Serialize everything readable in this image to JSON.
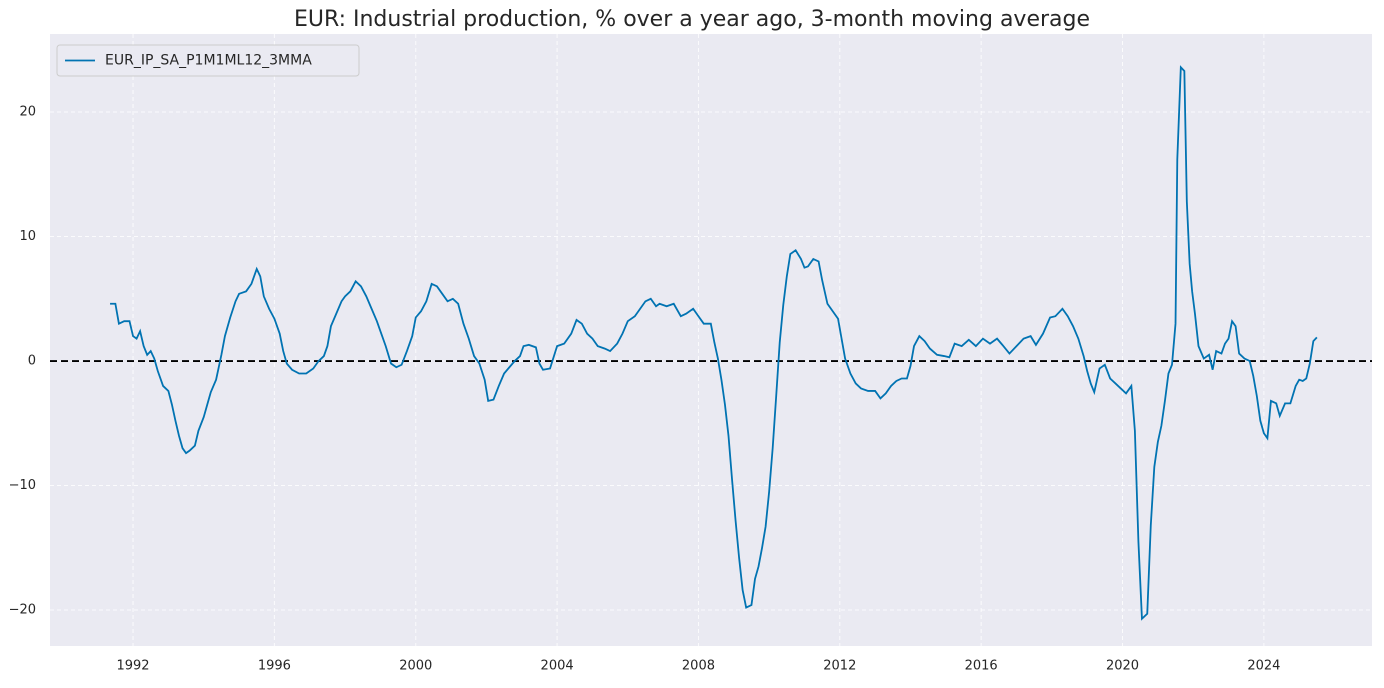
{
  "chart_data": {
    "type": "line",
    "title": "EUR: Industrial production, % over a year ago, 3-month moving average",
    "x": [
      1991.35,
      1991.5,
      1991.6,
      1991.75,
      1991.9,
      1992.0,
      1992.1,
      1992.2,
      1992.3,
      1992.4,
      1992.5,
      1992.6,
      1992.7,
      1992.85,
      1993.0,
      1993.1,
      1993.2,
      1993.3,
      1993.4,
      1993.5,
      1993.6,
      1993.75,
      1993.85,
      1994.0,
      1994.1,
      1994.2,
      1994.35,
      1994.5,
      1994.6,
      1994.75,
      1994.9,
      1995.0,
      1995.2,
      1995.35,
      1995.5,
      1995.6,
      1995.7,
      1995.85,
      1996.0,
      1996.15,
      1996.25,
      1996.35,
      1996.5,
      1996.7,
      1996.9,
      1997.1,
      1997.25,
      1997.4,
      1997.5,
      1997.6,
      1997.75,
      1997.9,
      1998.0,
      1998.15,
      1998.3,
      1998.45,
      1998.6,
      1998.75,
      1998.9,
      1999.0,
      1999.15,
      1999.3,
      1999.45,
      1999.6,
      1999.75,
      1999.9,
      2000.0,
      2000.15,
      2000.3,
      2000.45,
      2000.6,
      2000.75,
      2000.9,
      2001.05,
      2001.2,
      2001.35,
      2001.5,
      2001.65,
      2001.8,
      2001.95,
      2002.05,
      2002.2,
      2002.35,
      2002.5,
      2002.65,
      2002.8,
      2002.95,
      2003.05,
      2003.2,
      2003.4,
      2003.5,
      2003.6,
      2003.8,
      2004.0,
      2004.2,
      2004.4,
      2004.55,
      2004.7,
      2004.85,
      2005.0,
      2005.15,
      2005.35,
      2005.5,
      2005.7,
      2005.85,
      2006.0,
      2006.2,
      2006.35,
      2006.5,
      2006.65,
      2006.8,
      2006.9,
      2007.1,
      2007.3,
      2007.5,
      2007.65,
      2007.85,
      2008.0,
      2008.15,
      2008.35,
      2008.45,
      2008.55,
      2008.65,
      2008.75,
      2008.85,
      2008.95,
      2009.05,
      2009.15,
      2009.25,
      2009.35,
      2009.5,
      2009.6,
      2009.7,
      2009.8,
      2009.9,
      2010.0,
      2010.1,
      2010.2,
      2010.3,
      2010.4,
      2010.5,
      2010.6,
      2010.75,
      2010.9,
      2011.0,
      2011.1,
      2011.25,
      2011.4,
      2011.5,
      2011.65,
      2011.8,
      2011.95,
      2012.05,
      2012.15,
      2012.3,
      2012.45,
      2012.6,
      2012.8,
      2013.0,
      2013.15,
      2013.3,
      2013.45,
      2013.6,
      2013.75,
      2013.9,
      2014.0,
      2014.1,
      2014.25,
      2014.4,
      2014.55,
      2014.75,
      2014.95,
      2015.1,
      2015.25,
      2015.45,
      2015.65,
      2015.85,
      2016.05,
      2016.25,
      2016.45,
      2016.6,
      2016.8,
      2017.0,
      2017.2,
      2017.4,
      2017.55,
      2017.75,
      2017.95,
      2018.1,
      2018.3,
      2018.45,
      2018.6,
      2018.75,
      2018.9,
      2019.0,
      2019.1,
      2019.2,
      2019.35,
      2019.5,
      2019.65,
      2019.8,
      2019.95,
      2020.1,
      2020.25,
      2020.35,
      2020.45,
      2020.55,
      2020.7,
      2020.8,
      2020.9,
      2021.0,
      2021.1,
      2021.2,
      2021.3,
      2021.4,
      2021.5,
      2021.55,
      2021.65,
      2021.75,
      2021.82,
      2021.9,
      2021.97,
      2022.05,
      2022.15,
      2022.3,
      2022.45,
      2022.55,
      2022.65,
      2022.8,
      2022.9,
      2023.0,
      2023.1,
      2023.2,
      2023.3,
      2023.45,
      2023.6,
      2023.7,
      2023.8,
      2023.9,
      2024.0,
      2024.1,
      2024.2,
      2024.35,
      2024.45,
      2024.6,
      2024.75,
      2024.9,
      2025.0,
      2025.1,
      2025.2,
      2025.3,
      2025.4,
      2025.5
    ],
    "series": [
      {
        "name": "EUR_IP_SA_P1M1ML12_3MMA",
        "color": "#0173b2",
        "values": [
          4.6,
          4.6,
          3.0,
          3.2,
          3.2,
          2.0,
          1.8,
          2.4,
          1.2,
          0.5,
          0.8,
          0.2,
          -0.8,
          -2.0,
          -2.4,
          -3.5,
          -4.8,
          -6.0,
          -7.0,
          -7.4,
          -7.2,
          -6.8,
          -5.6,
          -4.5,
          -3.5,
          -2.5,
          -1.5,
          0.5,
          2.0,
          3.5,
          4.8,
          5.4,
          5.6,
          6.2,
          7.4,
          6.8,
          5.2,
          4.2,
          3.4,
          2.2,
          0.8,
          -0.2,
          -0.7,
          -1.0,
          -1.0,
          -0.6,
          0,
          0.4,
          1.2,
          2.8,
          3.8,
          4.8,
          5.2,
          5.6,
          6.4,
          6.0,
          5.2,
          4.2,
          3.2,
          2.4,
          1.2,
          -0.2,
          -0.5,
          -0.3,
          0.8,
          2.0,
          3.5,
          4.0,
          4.8,
          6.2,
          6.0,
          5.4,
          4.8,
          5.0,
          4.6,
          3.0,
          1.8,
          0.4,
          -0.2,
          -1.5,
          -3.2,
          -3.1,
          -2.0,
          -1.0,
          -0.5,
          0,
          0.4,
          1.2,
          1.3,
          1.1,
          -0.2,
          -0.7,
          -0.6,
          1.2,
          1.4,
          2.2,
          3.3,
          3.0,
          2.2,
          1.8,
          1.2,
          1.0,
          0.8,
          1.4,
          2.2,
          3.2,
          3.6,
          4.2,
          4.8,
          5.0,
          4.4,
          4.6,
          4.4,
          4.6,
          3.6,
          3.8,
          4.2,
          3.6,
          3.0,
          3.0,
          1.5,
          0.2,
          -1.5,
          -3.5,
          -6.0,
          -9.5,
          -12.8,
          -15.8,
          -18.4,
          -19.8,
          -19.6,
          -17.5,
          -16.5,
          -15.0,
          -13.3,
          -10.5,
          -7.0,
          -2.8,
          1.5,
          4.5,
          6.8,
          8.6,
          8.9,
          8.2,
          7.5,
          7.6,
          8.2,
          8.0,
          6.5,
          4.6,
          4.0,
          3.4,
          1.8,
          0.2,
          -1.0,
          -1.8,
          -2.2,
          -2.4,
          -2.4,
          -3.0,
          -2.6,
          -2.0,
          -1.6,
          -1.4,
          -1.4,
          -0.4,
          1.2,
          2.0,
          1.6,
          1.0,
          0.5,
          0.4,
          0.3,
          1.4,
          1.2,
          1.7,
          1.2,
          1.8,
          1.4,
          1.8,
          1.3,
          0.6,
          1.2,
          1.8,
          2.0,
          1.3,
          2.2,
          3.5,
          3.6,
          4.2,
          3.6,
          2.8,
          1.8,
          0.4,
          -0.8,
          -1.8,
          -2.5,
          -0.6,
          -0.3,
          -1.4,
          -1.8,
          -2.2,
          -2.6,
          -2.0,
          -5.6,
          -14.5,
          -20.7,
          -20.3,
          -13.2,
          -8.5,
          -6.5,
          -5.2,
          -3.2,
          -1.0,
          -0.3,
          3.0,
          16.2,
          23.6,
          23.3,
          12.8,
          7.8,
          5.6,
          3.8,
          1.2,
          0.2,
          0.5,
          -0.7,
          0.8,
          0.6,
          1.4,
          1.8,
          3.2,
          2.8,
          0.6,
          0.2,
          0.0,
          -1.2,
          -2.8,
          -4.8,
          -5.8,
          -6.2,
          -3.2,
          -3.4,
          -4.4,
          -3.4,
          -3.4,
          -2.0,
          -1.5,
          -1.6,
          -1.4,
          -0.2,
          1.6,
          1.9
        ]
      }
    ],
    "xlim": [
      1989.65,
      2027.06
    ],
    "xticks": [
      1992,
      1996,
      2000,
      2004,
      2008,
      2012,
      2016,
      2020,
      2024
    ],
    "ylim": [
      -22.89,
      26.27
    ],
    "yticks": [
      {
        "value": -20,
        "label": "−20"
      },
      {
        "value": -10,
        "label": "−10"
      },
      0,
      10,
      20
    ],
    "hline": 0,
    "grid": true,
    "legend": "upper-left"
  }
}
